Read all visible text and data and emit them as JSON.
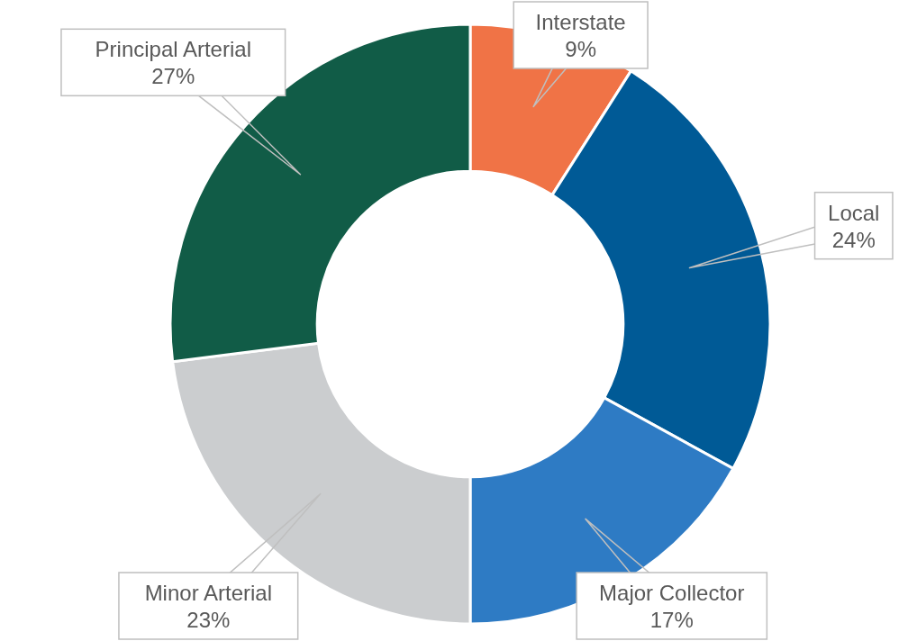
{
  "chart_data": {
    "type": "donut",
    "categories": [
      "Interstate",
      "Local",
      "Major Collector",
      "Minor Arterial",
      "Principal Arterial"
    ],
    "values": [
      9,
      24,
      17,
      23,
      27
    ],
    "colors": [
      "#f07346",
      "#005a96",
      "#2e7bc4",
      "#cbcdcf",
      "#115c47"
    ],
    "value_labels": [
      "9%",
      "24%",
      "17%",
      "23%",
      "27%"
    ]
  }
}
